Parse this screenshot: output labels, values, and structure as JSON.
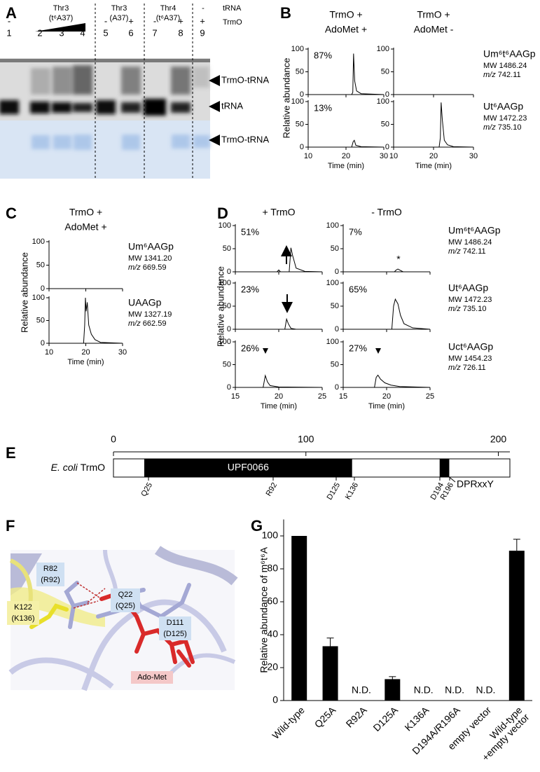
{
  "panel_letters": [
    "A",
    "B",
    "C",
    "D",
    "E",
    "F",
    "G"
  ],
  "gel": {
    "groups": [
      [
        "Thr3",
        "(t⁶A37)"
      ],
      [
        "Thr3",
        "(A37)"
      ],
      [
        "Thr4",
        "(t⁶A37)"
      ],
      [
        "-"
      ]
    ],
    "row_labels": [
      "tRNA",
      "TrmO"
    ],
    "trmo": [
      "-",
      null,
      null,
      null,
      "-",
      "+",
      "-",
      "+",
      "+"
    ],
    "lanes": [
      "1",
      "2",
      "3",
      "4",
      "5",
      "6",
      "7",
      "8",
      "9"
    ],
    "bands": [
      "TrmO-tRNA",
      "tRNA",
      "TrmO-tRNA"
    ]
  },
  "chart_data": [
    {
      "type": "line",
      "color": "#000000",
      "columns": [
        {
          "title": [
            "TrmO +",
            "AdoMet +"
          ],
          "traces": [
            {
              "label": "87%",
              "x": [
                10,
                21.5,
                21.8,
                22,
                22.3,
                22.8,
                24,
                30
              ],
              "values": [
                0,
                0,
                5,
                90,
                30,
                8,
                2,
                0
              ]
            },
            {
              "label": "13%",
              "x": [
                10,
                21.5,
                21.9,
                22.2,
                22.6,
                24,
                30
              ],
              "values": [
                0,
                0,
                12,
                15,
                4,
                1,
                0
              ]
            }
          ]
        },
        {
          "title": [
            "TrmO +",
            "AdoMet -"
          ],
          "traces": [
            {
              "x": [
                10,
                30
              ],
              "values": [
                0,
                0
              ]
            },
            {
              "x": [
                10,
                21.4,
                21.7,
                21.9,
                22.2,
                22.7,
                23.5,
                25,
                30
              ],
              "values": [
                0,
                0,
                20,
                98,
                60,
                15,
                5,
                1,
                0
              ]
            }
          ]
        }
      ],
      "rows": [
        {
          "name": "Um⁶t⁶AAGp",
          "mw": "MW 1486.24",
          "mz": [
            "m/z",
            " 742.11"
          ]
        },
        {
          "name": "Ut⁶AAGp",
          "mw": "MW 1472.23",
          "mz": [
            "m/z",
            " 735.10"
          ]
        }
      ],
      "xlim": [
        10,
        30
      ],
      "xticks": [
        10,
        20,
        30
      ],
      "ylim": [
        0,
        100
      ],
      "yticks": [
        0,
        50,
        100
      ],
      "x_label": "Time (min)",
      "y_label": "Relative abundance"
    },
    {
      "type": "line",
      "color": "#000000",
      "columns": [
        {
          "title": [
            "TrmO +",
            "AdoMet +"
          ],
          "traces": [
            {
              "x": [
                10,
                30
              ],
              "values": [
                0,
                0
              ]
            },
            {
              "x": [
                10,
                19.4,
                19.7,
                19.9,
                20.1,
                20.4,
                20.8,
                21.5,
                22.5,
                24,
                30
              ],
              "values": [
                0,
                0,
                40,
                100,
                70,
                90,
                40,
                20,
                8,
                2,
                0
              ]
            }
          ]
        }
      ],
      "rows": [
        {
          "name": "Um⁶AAGp",
          "mw": "MW 1341.20",
          "mz": [
            "m/z",
            " 669.59"
          ]
        },
        {
          "name": "UAAGp",
          "mw": "MW 1327.19",
          "mz": [
            "m/z",
            " 662.59"
          ]
        }
      ],
      "xlim": [
        10,
        30
      ],
      "xticks": [
        10,
        20,
        30
      ],
      "ylim": [
        0,
        100
      ],
      "yticks": [
        0,
        50,
        100
      ],
      "x_label": "Time (min)",
      "y_label": "Relative abundance"
    },
    {
      "type": "line",
      "color": "#000000",
      "columns": [
        {
          "title": [
            "+ TrmO"
          ],
          "traces": [
            {
              "label": "51%",
              "x": [
                15,
                19.8,
                20,
                20.2,
                21.2,
                21.4,
                21.6,
                22,
                23,
                25
              ],
              "values": [
                0,
                0,
                4,
                0,
                0,
                52,
                35,
                8,
                1,
                0
              ]
            },
            {
              "label": "23%",
              "x": [
                15,
                20.7,
                20.9,
                21.1,
                21.4,
                22,
                25
              ],
              "values": [
                0,
                0,
                22,
                12,
                2,
                0,
                0
              ]
            },
            {
              "label": "26%",
              "x": [
                15,
                18.2,
                18.45,
                18.7,
                19,
                20,
                25
              ],
              "values": [
                0,
                0,
                26,
                12,
                4,
                1,
                0
              ]
            }
          ]
        },
        {
          "title": [
            "- TrmO"
          ],
          "traces": [
            {
              "label": "7%",
              "x": [
                15,
                20.9,
                21.1,
                21.3,
                21.6,
                21.9,
                25
              ],
              "values": [
                0,
                0,
                4,
                6,
                3,
                0,
                0
              ]
            },
            {
              "label": "65%",
              "x": [
                15,
                20.6,
                20.8,
                21,
                21.3,
                21.6,
                22,
                23,
                25
              ],
              "values": [
                0,
                0,
                50,
                65,
                55,
                30,
                12,
                3,
                0
              ]
            },
            {
              "label": "27%",
              "x": [
                15,
                18.6,
                18.8,
                19,
                19.3,
                19.8,
                20.5,
                21.5,
                25
              ],
              "values": [
                0,
                0,
                22,
                27,
                18,
                10,
                5,
                2,
                0
              ]
            }
          ]
        }
      ],
      "rows": [
        {
          "name": "Um⁶t⁶AAGp",
          "mw": "MW 1486.24",
          "mz": [
            "m/z",
            " 742.11"
          ]
        },
        {
          "name": "Ut⁶AAGp",
          "mw": "MW 1472.23",
          "mz": [
            "m/z",
            " 735.10"
          ]
        },
        {
          "name": "Uct⁶AAGp",
          "mw": "MW 1454.23",
          "mz": [
            "m/z",
            " 726.11"
          ]
        }
      ],
      "annotation": "*",
      "xlim": [
        15,
        25
      ],
      "xticks": [
        15,
        20,
        25
      ],
      "ylim": [
        0,
        100
      ],
      "yticks": [
        0,
        50,
        100
      ],
      "x_label": "Time (min)",
      "y_label": "Relative abundance"
    },
    {
      "type": "bar",
      "color": "#000000",
      "categories": [
        "Wild-type",
        "Q25A",
        "R92A",
        "D125A",
        "K136A",
        "D194A/R196A",
        "empty vector",
        [
          "Wild-type",
          "+empty vector"
        ]
      ],
      "values": [
        100,
        33,
        null,
        13,
        null,
        null,
        null,
        91
      ],
      "value_labels": [
        null,
        null,
        "N.D.",
        null,
        "N.D.",
        "N.D.",
        "N.D.",
        null
      ],
      "errors": [
        null,
        5,
        null,
        1.5,
        null,
        null,
        null,
        7
      ],
      "ylim": [
        0,
        110
      ],
      "yticks": [
        0,
        20,
        40,
        60,
        80,
        100
      ],
      "y_label": "Relative abundance of m⁶t⁶A"
    }
  ],
  "domain_map": {
    "protein": {
      "species": "E. coli",
      "name": "TrmO"
    },
    "scale": {
      "lim": [
        0,
        206
      ],
      "ticks": [
        0,
        100,
        200
      ]
    },
    "length": 206,
    "domain": {
      "label": "UPF0066",
      "start": 16,
      "end": 124
    },
    "motif": {
      "label": "DPRxxY",
      "start": 169.5,
      "end": 174.5
    },
    "residues": [
      "Q25",
      "R92",
      "D125",
      "K136",
      "D194",
      "R196"
    ]
  },
  "structure": {
    "residues": [
      [
        "R82",
        "(R92)"
      ],
      [
        "Q22",
        "(Q25)"
      ],
      [
        "D111",
        "(D125)"
      ],
      [
        "K122",
        "(K136)"
      ]
    ],
    "ligand": "Ado-Met"
  }
}
